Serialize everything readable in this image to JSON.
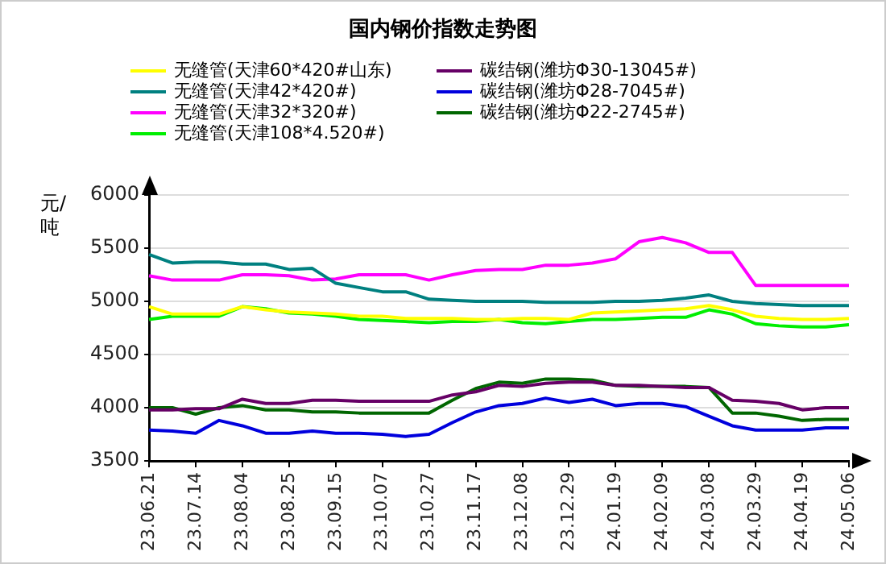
{
  "chart_data": {
    "type": "line",
    "title": "国内钢价指数走势图",
    "ylabel": "元/吨",
    "categories": [
      "23.06.21",
      null,
      "23.07.14",
      null,
      "23.08.04",
      null,
      "23.08.25",
      null,
      "23.09.15",
      null,
      "23.10.07",
      null,
      "23.10.27",
      null,
      "23.11.17",
      null,
      "23.12.08",
      null,
      "23.12.29",
      null,
      "24.01.19",
      null,
      "24.02.09",
      null,
      "24.03.08",
      null,
      "24.03.29",
      null,
      "24.04.19",
      null,
      "24.05.06"
    ],
    "series": [
      {
        "name": "无缝管(天津60*420#山东)",
        "color": "#ffff00",
        "values": [
          4950,
          4880,
          4880,
          4880,
          4950,
          4920,
          4900,
          4890,
          4880,
          4860,
          4860,
          4840,
          4840,
          4840,
          4830,
          4830,
          4840,
          4840,
          4830,
          4890,
          4900,
          4910,
          4920,
          4930,
          4960,
          4920,
          4860,
          4840,
          4830,
          4830,
          4840
        ]
      },
      {
        "name": "无缝管(天津42*420#)",
        "color": "#008080",
        "values": [
          5440,
          5360,
          5370,
          5370,
          5350,
          5350,
          5300,
          5310,
          5170,
          5130,
          5090,
          5090,
          5020,
          5010,
          5000,
          5000,
          5000,
          4990,
          4990,
          4990,
          5000,
          5000,
          5010,
          5030,
          5060,
          5000,
          4980,
          4970,
          4960,
          4960,
          4960
        ]
      },
      {
        "name": "无缝管(天津32*320#)",
        "color": "#ff00ff",
        "values": [
          5240,
          5200,
          5200,
          5200,
          5250,
          5250,
          5240,
          5200,
          5210,
          5250,
          5250,
          5250,
          5200,
          5250,
          5290,
          5300,
          5300,
          5340,
          5340,
          5360,
          5400,
          5560,
          5600,
          5550,
          5460,
          5460,
          5150,
          5150,
          5150,
          5150,
          5150
        ]
      },
      {
        "name": "无缝管(天津108*4.520#)",
        "color": "#00ee00",
        "values": [
          4830,
          4860,
          4860,
          4860,
          4950,
          4930,
          4890,
          4880,
          4860,
          4830,
          4820,
          4810,
          4800,
          4810,
          4810,
          4830,
          4800,
          4790,
          4810,
          4830,
          4830,
          4840,
          4850,
          4850,
          4920,
          4880,
          4790,
          4770,
          4760,
          4760,
          4780
        ]
      },
      {
        "name": "碳结钢(潍坊Φ30-13045#)",
        "color": "#660066",
        "values": [
          3980,
          3980,
          3990,
          3990,
          4080,
          4040,
          4040,
          4070,
          4070,
          4060,
          4060,
          4060,
          4060,
          4120,
          4150,
          4210,
          4200,
          4230,
          4240,
          4240,
          4210,
          4210,
          4200,
          4190,
          4190,
          4070,
          4060,
          4040,
          3980,
          4000,
          4000
        ]
      },
      {
        "name": "碳结钢(潍坊Φ28-7045#)",
        "color": "#0000dd",
        "values": [
          3790,
          3780,
          3760,
          3880,
          3830,
          3760,
          3760,
          3780,
          3760,
          3760,
          3750,
          3730,
          3750,
          3860,
          3960,
          4020,
          4040,
          4090,
          4050,
          4080,
          4020,
          4040,
          4040,
          4010,
          3920,
          3830,
          3790,
          3790,
          3790,
          3810,
          3810
        ]
      },
      {
        "name": "碳结钢(潍坊Φ22-2745#)",
        "color": "#006600",
        "values": [
          4000,
          4000,
          3940,
          4000,
          4020,
          3980,
          3980,
          3960,
          3960,
          3950,
          3950,
          3950,
          3950,
          4070,
          4180,
          4240,
          4230,
          4270,
          4270,
          4260,
          4210,
          4200,
          4200,
          4200,
          4190,
          3950,
          3950,
          3920,
          3880,
          3890,
          3890
        ]
      }
    ],
    "ylim": [
      3500,
      6000
    ],
    "yticks": [
      3500,
      4000,
      4500,
      5000,
      5500,
      6000
    ],
    "grid": "y",
    "legend": "top",
    "marker": "none",
    "line_style": "solid"
  }
}
